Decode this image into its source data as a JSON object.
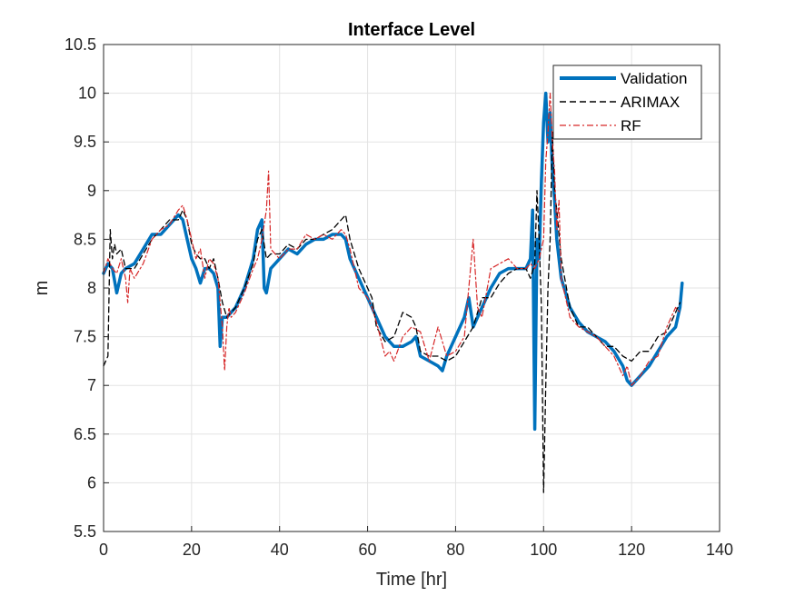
{
  "chart_data": {
    "type": "line",
    "title": "Interface Level",
    "xlabel": "Time [hr]",
    "ylabel": "m",
    "xlim": [
      0,
      140
    ],
    "ylim": [
      5.5,
      10.5
    ],
    "xticks": [
      "0",
      "20",
      "40",
      "60",
      "80",
      "100",
      "120",
      "140"
    ],
    "yticks": [
      "5.5",
      "6",
      "6.5",
      "7",
      "7.5",
      "8",
      "8.5",
      "9",
      "9.5",
      "10",
      "10.5"
    ],
    "grid": true,
    "legend_position": "top-right",
    "series": [
      {
        "name": "Validation",
        "color": "#0072BD",
        "style": "solid",
        "x": [
          0,
          1,
          2,
          3,
          4,
          5,
          7,
          9,
          11,
          13,
          15,
          17,
          18,
          19,
          20,
          21,
          22,
          23,
          24,
          25,
          26,
          26.5,
          27,
          28,
          30,
          32,
          34,
          35,
          36,
          36.5,
          37,
          38,
          40,
          42,
          44,
          46,
          48,
          50,
          52,
          54,
          55,
          56,
          58,
          60,
          61,
          62,
          64,
          66,
          68,
          70,
          71,
          72,
          74,
          76,
          77,
          78,
          80,
          82,
          83,
          84,
          86,
          88,
          90,
          92,
          94,
          96,
          97,
          97.5,
          98,
          98.5,
          99,
          99.5,
          100,
          100.5,
          101,
          101.5,
          102,
          102.5,
          103,
          104,
          106,
          108,
          110,
          112,
          114,
          116,
          118,
          119,
          120,
          122,
          124,
          126,
          128,
          130,
          131,
          131.5
        ],
        "y": [
          8.15,
          8.25,
          8.2,
          7.95,
          8.15,
          8.2,
          8.25,
          8.4,
          8.55,
          8.55,
          8.65,
          8.75,
          8.7,
          8.5,
          8.3,
          8.2,
          8.05,
          8.2,
          8.2,
          8.15,
          8.0,
          7.4,
          7.7,
          7.7,
          7.8,
          8.0,
          8.3,
          8.6,
          8.7,
          8.0,
          7.95,
          8.2,
          8.3,
          8.4,
          8.35,
          8.45,
          8.5,
          8.5,
          8.55,
          8.55,
          8.5,
          8.3,
          8.1,
          7.9,
          7.8,
          7.7,
          7.5,
          7.4,
          7.4,
          7.45,
          7.5,
          7.3,
          7.25,
          7.2,
          7.15,
          7.3,
          7.5,
          7.7,
          7.9,
          7.6,
          7.8,
          8.0,
          8.15,
          8.2,
          8.2,
          8.2,
          8.3,
          8.8,
          6.55,
          8.5,
          8.3,
          9.1,
          9.7,
          10.0,
          9.5,
          9.8,
          9.2,
          8.9,
          8.5,
          8.1,
          7.8,
          7.65,
          7.55,
          7.5,
          7.45,
          7.35,
          7.2,
          7.05,
          7.0,
          7.1,
          7.2,
          7.35,
          7.5,
          7.6,
          7.8,
          8.05
        ]
      },
      {
        "name": "ARIMAX",
        "color": "#000000",
        "style": "dashed",
        "x": [
          0,
          1,
          1.5,
          2,
          2.5,
          3,
          4,
          5,
          7,
          9,
          11,
          13,
          15,
          17,
          18,
          19,
          20,
          21,
          22,
          23,
          24,
          25,
          26,
          27,
          28,
          30,
          32,
          34,
          35,
          36,
          37,
          38,
          40,
          42,
          44,
          46,
          48,
          50,
          52,
          54,
          55,
          56,
          58,
          60,
          61,
          62,
          64,
          66,
          68,
          70,
          71,
          72,
          74,
          76,
          78,
          80,
          82,
          84,
          86,
          88,
          90,
          92,
          94,
          96,
          97,
          98,
          98.5,
          99,
          99.5,
          100,
          100.5,
          101,
          101.5,
          102,
          102.5,
          103,
          104,
          106,
          108,
          110,
          112,
          114,
          116,
          118,
          120,
          122,
          124,
          126,
          128,
          130,
          131
        ],
        "y": [
          7.2,
          7.3,
          8.6,
          8.3,
          8.45,
          8.35,
          8.4,
          8.2,
          8.2,
          8.35,
          8.5,
          8.6,
          8.7,
          8.7,
          8.8,
          8.7,
          8.45,
          8.35,
          8.3,
          8.3,
          8.2,
          8.3,
          8.1,
          7.85,
          7.7,
          7.8,
          8.0,
          8.25,
          8.5,
          8.6,
          8.3,
          8.35,
          8.35,
          8.45,
          8.4,
          8.5,
          8.5,
          8.55,
          8.6,
          8.7,
          8.75,
          8.5,
          8.2,
          8.0,
          7.9,
          7.6,
          7.45,
          7.5,
          7.75,
          7.7,
          7.6,
          7.35,
          7.3,
          7.3,
          7.25,
          7.3,
          7.45,
          7.6,
          7.9,
          7.9,
          8.05,
          8.15,
          8.2,
          8.2,
          8.1,
          8.25,
          9.0,
          8.5,
          7.8,
          5.9,
          7.0,
          8.0,
          8.5,
          9.6,
          9.0,
          8.8,
          8.3,
          7.8,
          7.6,
          7.6,
          7.5,
          7.4,
          7.4,
          7.3,
          7.25,
          7.35,
          7.35,
          7.5,
          7.55,
          7.75,
          7.85
        ]
      },
      {
        "name": "RF",
        "color": "#D62728",
        "style": "dashdot",
        "x": [
          0,
          1,
          2,
          3,
          4,
          5,
          5.5,
          6,
          7,
          9,
          11,
          13,
          15,
          17,
          18,
          19,
          20,
          21,
          22,
          23,
          24,
          25,
          26,
          27,
          27.5,
          28,
          28.5,
          29,
          30,
          32,
          34,
          35,
          36,
          37,
          37.5,
          38,
          40,
          42,
          44,
          46,
          48,
          50,
          52,
          54,
          55,
          56,
          58,
          60,
          61,
          62,
          64,
          65,
          66,
          68,
          70,
          72,
          74,
          76,
          78,
          80,
          82,
          84,
          85,
          86,
          88,
          90,
          92,
          94,
          96,
          97,
          98,
          99,
          100,
          100.5,
          101,
          101.5,
          102,
          102.5,
          103,
          103.5,
          104,
          106,
          108,
          110,
          112,
          114,
          116,
          118,
          119,
          120,
          121,
          122,
          124,
          126,
          128,
          130,
          131
        ],
        "y": [
          8.15,
          8.3,
          8.2,
          8.15,
          8.3,
          8.1,
          7.85,
          8.2,
          8.1,
          8.25,
          8.5,
          8.6,
          8.65,
          8.8,
          8.85,
          8.7,
          8.5,
          8.3,
          8.4,
          8.1,
          8.3,
          8.25,
          8.1,
          7.6,
          7.15,
          7.6,
          7.8,
          7.7,
          7.75,
          7.95,
          8.2,
          8.3,
          8.5,
          8.8,
          9.2,
          8.4,
          8.3,
          8.4,
          8.4,
          8.55,
          8.5,
          8.55,
          8.5,
          8.6,
          8.55,
          8.4,
          8.0,
          7.9,
          7.8,
          7.65,
          7.3,
          7.35,
          7.25,
          7.5,
          7.6,
          7.55,
          7.25,
          7.6,
          7.3,
          7.35,
          7.5,
          8.5,
          7.8,
          7.7,
          8.2,
          8.25,
          8.3,
          8.2,
          8.2,
          8.25,
          8.2,
          8.3,
          8.5,
          9.3,
          9.6,
          10.0,
          9.5,
          9.2,
          8.6,
          8.9,
          8.1,
          7.7,
          7.6,
          7.55,
          7.5,
          7.4,
          7.3,
          7.1,
          7.2,
          7.0,
          7.05,
          7.1,
          7.25,
          7.3,
          7.6,
          7.8,
          7.75
        ]
      }
    ]
  }
}
